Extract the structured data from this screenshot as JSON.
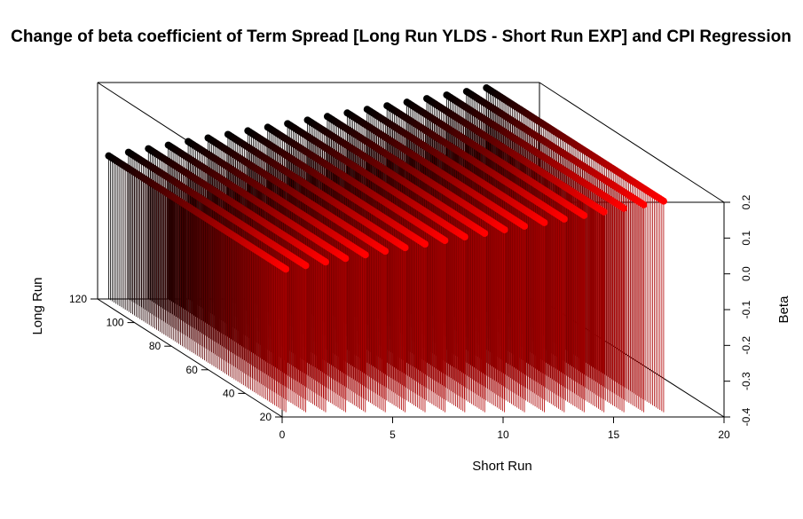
{
  "chart_data": {
    "type": "scatter",
    "subtype": "3d-scatter-with-drop-lines",
    "title": "Change of beta coefficient of Term Spread [Long Run YLDS - Short Run EXP] and CPI Regression",
    "xlabel": "Short Run",
    "ylabel": "Long Run",
    "zlabel": "Beta",
    "xlim": [
      0,
      20
    ],
    "ylim": [
      20,
      120
    ],
    "zlim": [
      -0.4,
      0.2
    ],
    "x_ticks": [
      "0",
      "5",
      "10",
      "15",
      "20"
    ],
    "y_ticks": [
      "20",
      "40",
      "60",
      "80",
      "100",
      "120"
    ],
    "z_ticks": [
      "-0.4",
      "-0.3",
      "-0.2",
      "-0.1",
      "0.0",
      "0.1",
      "0.2"
    ],
    "grid": false,
    "colors": {
      "front": "#ff0000",
      "back": "#000000",
      "drop_front": "#b30000",
      "drop_back": "#000000"
    },
    "series": [
      {
        "short_run": [
          0.5,
          17.6
        ],
        "long_run": [
          120,
          120
        ],
        "beta": [
          0.0,
          0.19
        ],
        "note_on_shape": ""
      },
      {
        "short_run": [
          0.5,
          17.6
        ],
        "long_run": [
          24,
          24
        ],
        "beta": [
          0.0,
          0.19
        ]
      }
    ]
  }
}
